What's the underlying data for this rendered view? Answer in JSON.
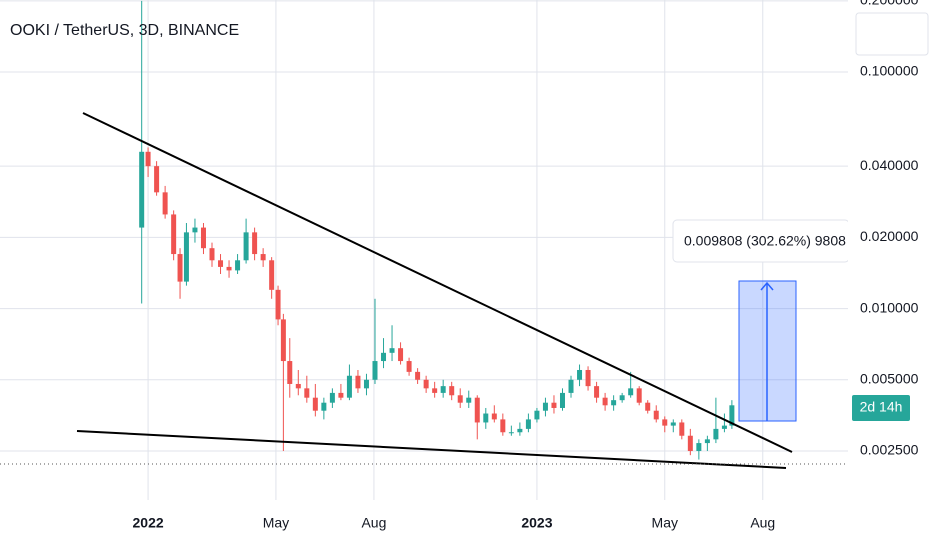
{
  "chart_data": {
    "type": "candlestick",
    "title": "OOKI / TetherUS, 3D, BINANCE",
    "log_scale": true,
    "grid": true,
    "up_color": "#26a69a",
    "down_color": "#ef5350",
    "xlim": [
      -139,
      657
    ],
    "xticks": [
      {
        "value": 0,
        "label": "2022"
      },
      {
        "value": 120,
        "label": "May"
      },
      {
        "value": 212,
        "label": "Aug"
      },
      {
        "value": 365,
        "label": "2023"
      },
      {
        "value": 485,
        "label": "May"
      },
      {
        "value": 577,
        "label": "Aug"
      }
    ],
    "ylim": [
      0.00171,
      0.2016
    ],
    "yticks": [
      {
        "value": 0.2,
        "label": "0.200000"
      },
      {
        "value": 0.1,
        "label": "0.100000"
      },
      {
        "value": 0.04,
        "label": "0.040000"
      },
      {
        "value": 0.02,
        "label": "0.020000"
      },
      {
        "value": 0.01,
        "label": "0.010000"
      },
      {
        "value": 0.005,
        "label": "0.005000"
      },
      {
        "value": 0.0025,
        "label": "0.002500"
      }
    ],
    "x": [
      -6,
      0,
      8,
      16,
      24,
      30,
      36,
      44,
      52,
      60,
      68,
      76,
      84,
      92,
      100,
      108,
      116,
      122,
      127,
      133,
      141,
      149,
      157,
      165,
      173,
      181,
      189,
      197,
      205,
      213,
      221,
      229,
      237,
      245,
      253,
      261,
      269,
      277,
      285,
      293,
      301,
      309,
      317,
      325,
      333,
      341,
      349,
      357,
      365,
      373,
      381,
      389,
      397,
      405,
      413,
      421,
      429,
      437,
      445,
      453,
      461,
      469,
      477,
      485,
      493,
      501,
      509,
      517,
      525,
      533,
      541,
      548
    ],
    "open": [
      0.022,
      0.046,
      0.04,
      0.031,
      0.025,
      0.017,
      0.013,
      0.021,
      0.022,
      0.018,
      0.016,
      0.015,
      0.0145,
      0.016,
      0.021,
      0.017,
      0.016,
      0.012,
      0.009,
      0.006,
      0.0048,
      0.0046,
      0.0042,
      0.0037,
      0.004,
      0.0044,
      0.0042,
      0.0052,
      0.0046,
      0.005,
      0.006,
      0.0065,
      0.0068,
      0.006,
      0.0054,
      0.005,
      0.0046,
      0.0044,
      0.0047,
      0.0043,
      0.004,
      0.0042,
      0.0033,
      0.0036,
      0.0034,
      0.003,
      0.003,
      0.0031,
      0.0034,
      0.0037,
      0.004,
      0.0038,
      0.0044,
      0.005,
      0.0055,
      0.0047,
      0.0042,
      0.0039,
      0.0041,
      0.0043,
      0.0046,
      0.004,
      0.0037,
      0.0034,
      0.0032,
      0.0033,
      0.0029,
      0.0025,
      0.0027,
      0.0028,
      0.0031,
      0.0032
    ],
    "high": [
      0.2,
      0.048,
      0.042,
      0.033,
      0.026,
      0.018,
      0.023,
      0.024,
      0.023,
      0.019,
      0.017,
      0.016,
      0.017,
      0.024,
      0.022,
      0.018,
      0.0165,
      0.0125,
      0.0095,
      0.0075,
      0.0055,
      0.0052,
      0.0048,
      0.0042,
      0.0046,
      0.0048,
      0.0058,
      0.0055,
      0.0053,
      0.011,
      0.0075,
      0.0085,
      0.0072,
      0.0062,
      0.0056,
      0.0052,
      0.0049,
      0.005,
      0.0049,
      0.0046,
      0.0045,
      0.0043,
      0.0038,
      0.0039,
      0.0036,
      0.0032,
      0.0033,
      0.0036,
      0.0038,
      0.0042,
      0.0043,
      0.0046,
      0.0052,
      0.0058,
      0.0057,
      0.0049,
      0.0044,
      0.0043,
      0.0044,
      0.0054,
      0.0047,
      0.0041,
      0.0039,
      0.0035,
      0.0034,
      0.0034,
      0.0031,
      0.0028,
      0.0029,
      0.0042,
      0.0036,
      0.0041
    ],
    "low": [
      0.0105,
      0.036,
      0.03,
      0.024,
      0.016,
      0.011,
      0.0125,
      0.019,
      0.017,
      0.015,
      0.014,
      0.0135,
      0.014,
      0.0155,
      0.016,
      0.015,
      0.011,
      0.0085,
      0.0025,
      0.0042,
      0.0043,
      0.004,
      0.0035,
      0.0034,
      0.0038,
      0.0041,
      0.0041,
      0.0044,
      0.0043,
      0.0048,
      0.0056,
      0.006,
      0.0058,
      0.0052,
      0.0048,
      0.0044,
      0.0042,
      0.0042,
      0.0041,
      0.0038,
      0.0038,
      0.0028,
      0.0031,
      0.0033,
      0.0029,
      0.0029,
      0.0029,
      0.003,
      0.0033,
      0.0035,
      0.0036,
      0.0037,
      0.0042,
      0.0047,
      0.0045,
      0.004,
      0.0037,
      0.0037,
      0.004,
      0.0042,
      0.0039,
      0.0036,
      0.0033,
      0.003,
      0.003,
      0.0028,
      0.0024,
      0.0023,
      0.0025,
      0.0027,
      0.003,
      0.0031
    ],
    "close": [
      0.046,
      0.04,
      0.031,
      0.025,
      0.017,
      0.013,
      0.021,
      0.022,
      0.018,
      0.016,
      0.015,
      0.0145,
      0.016,
      0.021,
      0.017,
      0.016,
      0.012,
      0.009,
      0.006,
      0.0048,
      0.0046,
      0.0042,
      0.0037,
      0.004,
      0.0044,
      0.0042,
      0.0052,
      0.0046,
      0.005,
      0.006,
      0.0065,
      0.0068,
      0.006,
      0.0054,
      0.005,
      0.0046,
      0.0044,
      0.0047,
      0.0043,
      0.004,
      0.0042,
      0.0033,
      0.0036,
      0.0034,
      0.003,
      0.003,
      0.0031,
      0.0034,
      0.0037,
      0.004,
      0.0038,
      0.0044,
      0.005,
      0.0055,
      0.0047,
      0.0042,
      0.0039,
      0.0041,
      0.0043,
      0.0046,
      0.004,
      0.0037,
      0.0034,
      0.0032,
      0.0033,
      0.0029,
      0.0025,
      0.0027,
      0.0028,
      0.0031,
      0.0032,
      0.0039
    ],
    "measure_label": "0.009808 (302.62%) 9808",
    "countdown": "2d 14h"
  }
}
